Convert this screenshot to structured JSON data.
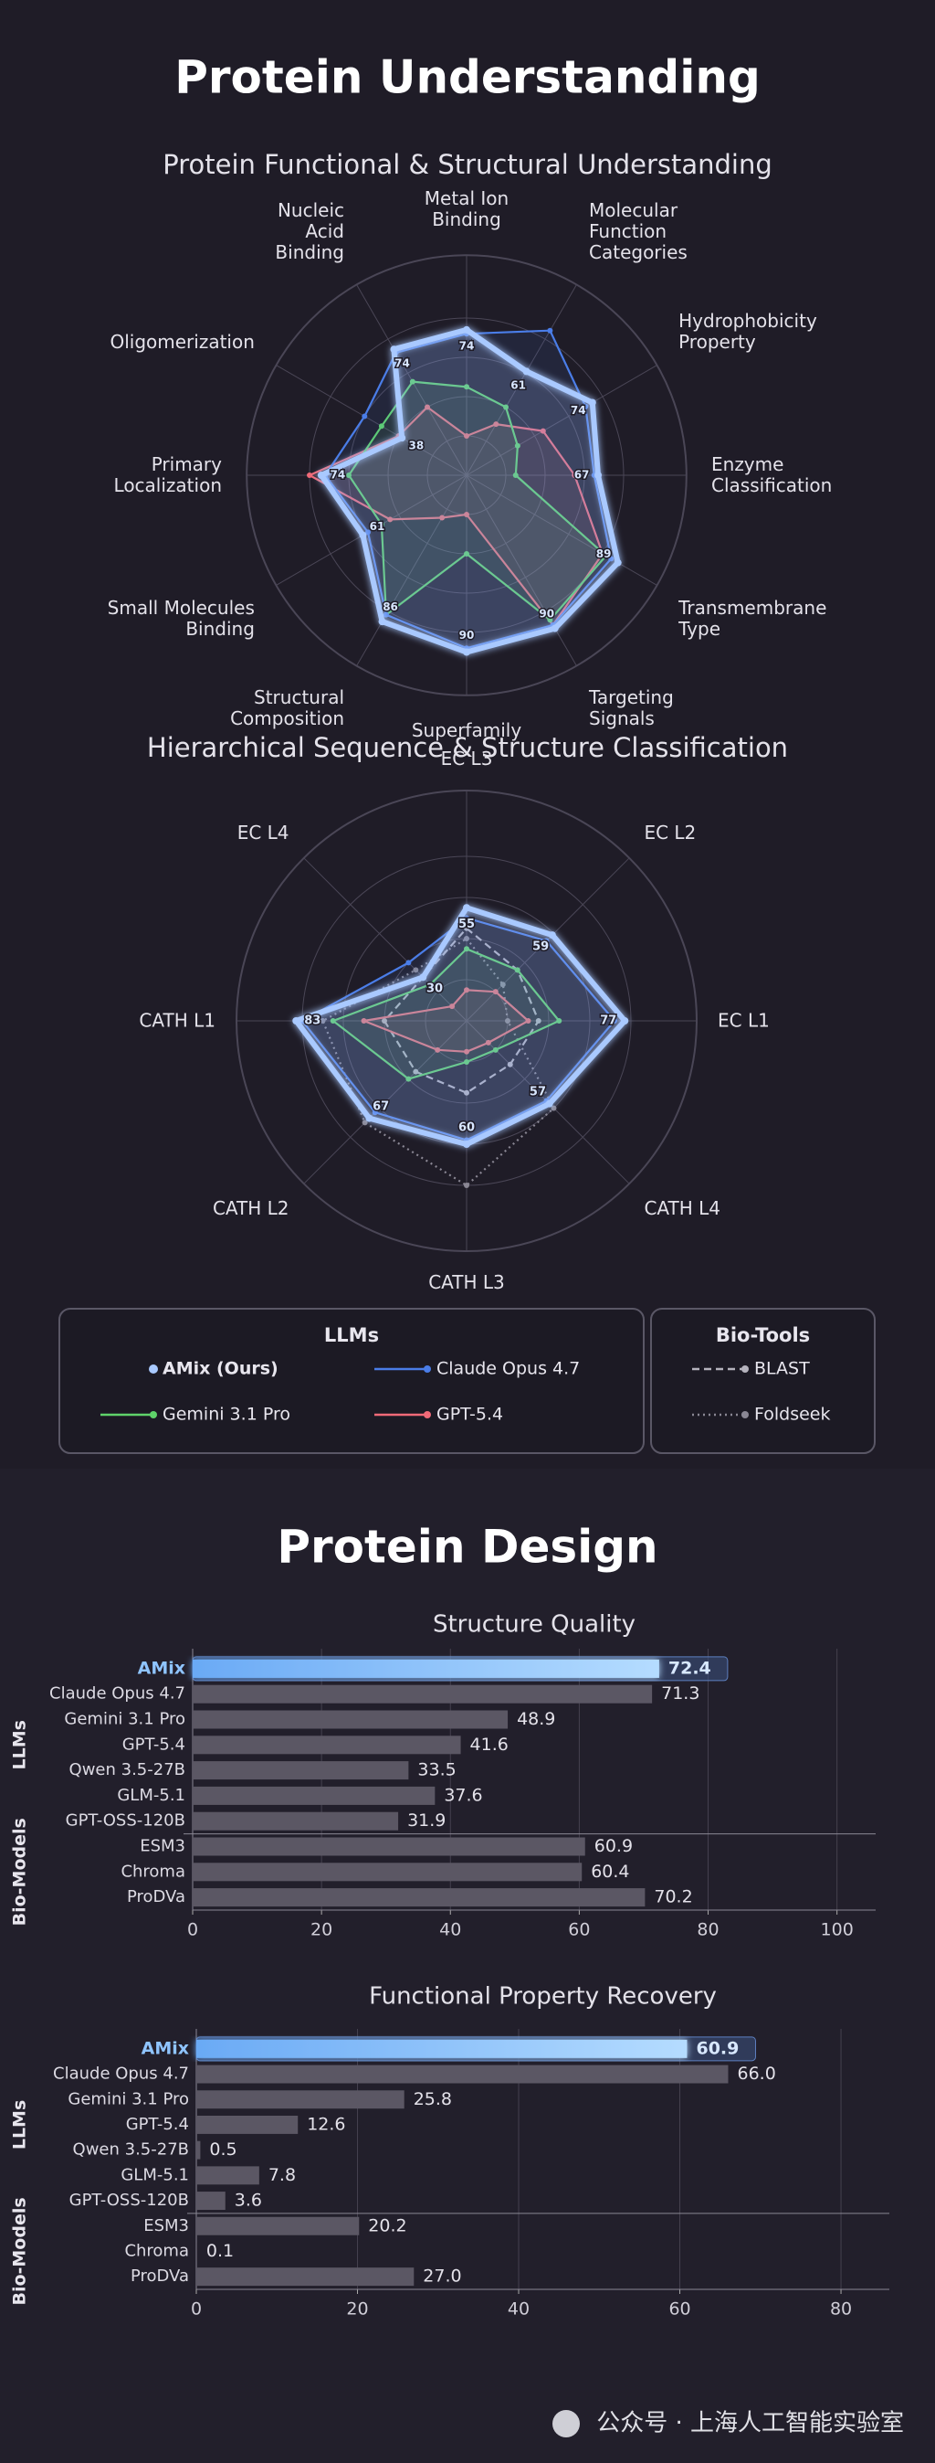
{
  "sections": [
    {
      "title": "Protein Understanding"
    },
    {
      "title": "Protein Design"
    }
  ],
  "chart_data": [
    {
      "type": "radar",
      "title": "Protein Functional & Structural Understanding",
      "categories": [
        "Metal Ion\nBinding",
        "Molecular\nFunction\nCategories",
        "Hydrophobicity\nProperty",
        "Enzyme\nClassification",
        "Transmembrane\nType",
        "Targeting\nSignals",
        "Superfamily",
        "Structural\nComposition",
        "Small Molecules\nBinding",
        "Primary\nLocalization",
        "Oligomerization",
        "Nucleic\nAcid\nBinding"
      ],
      "rlim": [
        0,
        100
      ],
      "grid": true,
      "series": [
        {
          "color": "#a9c9ff",
          "values": [
            74,
            61,
            74,
            67,
            89,
            90,
            90,
            86,
            61,
            74,
            38,
            74
          ],
          "labeled": true
        },
        {
          "color": "#4a7de8",
          "values": [
            72,
            85,
            70,
            65,
            85,
            88,
            88,
            82,
            58,
            72,
            60,
            72
          ]
        },
        {
          "color": "#5fd36a",
          "values": [
            45,
            40,
            30,
            25,
            82,
            85,
            40,
            82,
            50,
            60,
            50,
            55
          ]
        },
        {
          "color": "#f06a78",
          "values": [
            20,
            30,
            45,
            55,
            80,
            88,
            20,
            25,
            45,
            80,
            40,
            40
          ]
        }
      ]
    },
    {
      "type": "radar",
      "title": "Hierarchical Sequence & Structure Classification",
      "categories": [
        "EC L3",
        "EC L2",
        "EC L1",
        "CATH L4",
        "CATH L3",
        "CATH L2",
        "CATH L1",
        "EC L4"
      ],
      "rlim": [
        0,
        100
      ],
      "grid": true,
      "legend_groups": [
        "LLMs",
        "Bio-Tools"
      ],
      "series": [
        {
          "name": "AMix (Ours)",
          "color": "#a9c9ff",
          "group": 0,
          "values": [
            55,
            59,
            77,
            57,
            60,
            67,
            83,
            30
          ],
          "labeled": true
        },
        {
          "name": "Claude Opus 4.7",
          "color": "#4a7de8",
          "group": 0,
          "values": [
            50,
            55,
            72,
            55,
            58,
            63,
            80,
            40
          ]
        },
        {
          "name": "Gemini 3.1 Pro",
          "color": "#5fd36a",
          "group": 0,
          "values": [
            35,
            35,
            45,
            20,
            20,
            40,
            65,
            25
          ]
        },
        {
          "name": "GPT-5.4",
          "color": "#f06a78",
          "group": 0,
          "values": [
            15,
            20,
            30,
            15,
            15,
            20,
            50,
            10
          ]
        },
        {
          "name": "BLAST",
          "color": "#b5b3bd",
          "group": 1,
          "dash": "8 5",
          "values": [
            45,
            35,
            35,
            30,
            35,
            35,
            40,
            30
          ]
        },
        {
          "name": "Foldseek",
          "color": "#8a8794",
          "group": 1,
          "dash": "2 4",
          "values": [
            40,
            25,
            20,
            60,
            80,
            70,
            70,
            35
          ]
        }
      ]
    },
    {
      "type": "hbar",
      "title": "Structure Quality",
      "categories": [
        "AMix",
        "Claude Opus 4.7",
        "Gemini 3.1 Pro",
        "GPT-5.4",
        "Qwen 3.5-27B",
        "GLM-5.1",
        "GPT-OSS-120B",
        "ESM3",
        "Chroma",
        "ProDVa"
      ],
      "values": [
        72.4,
        71.3,
        48.9,
        41.6,
        33.5,
        37.6,
        31.9,
        60.9,
        60.4,
        70.2
      ],
      "value_labels": [
        "72.4",
        "71.3",
        "48.9",
        "41.6",
        "33.5",
        "37.6",
        "31.9",
        "60.9",
        "60.4",
        "70.2"
      ],
      "color": "#5b5764",
      "highlight": 0,
      "highlight_color": "#8fc4ff",
      "groups": [
        {
          "name": "LLMs",
          "count": 7
        },
        {
          "name": "Bio-Models",
          "count": 3
        }
      ],
      "xlim": [
        0,
        106
      ],
      "xticks": [
        0,
        20,
        40,
        60,
        80,
        100
      ],
      "grid": true
    },
    {
      "type": "hbar",
      "title": "Functional Property Recovery",
      "categories": [
        "AMix",
        "Claude Opus 4.7",
        "Gemini 3.1 Pro",
        "GPT-5.4",
        "Qwen 3.5-27B",
        "GLM-5.1",
        "GPT-OSS-120B",
        "ESM3",
        "Chroma",
        "ProDVa"
      ],
      "values": [
        60.9,
        66.0,
        25.8,
        12.6,
        0.5,
        7.8,
        3.6,
        20.2,
        0.1,
        27.0
      ],
      "value_labels": [
        "60.9",
        "66.0",
        "25.8",
        "12.6",
        "0.5",
        "7.8",
        "3.6",
        "20.2",
        "0.1",
        "27.0"
      ],
      "color": "#5b5764",
      "highlight": 0,
      "highlight_color": "#8fc4ff",
      "groups": [
        {
          "name": "LLMs",
          "count": 7
        },
        {
          "name": "Bio-Models",
          "count": 3
        }
      ],
      "xlim": [
        0,
        86
      ],
      "xticks": [
        0,
        20,
        40,
        60,
        80
      ],
      "grid": true
    }
  ],
  "footer": "公众号 · 上海人工智能实验室"
}
